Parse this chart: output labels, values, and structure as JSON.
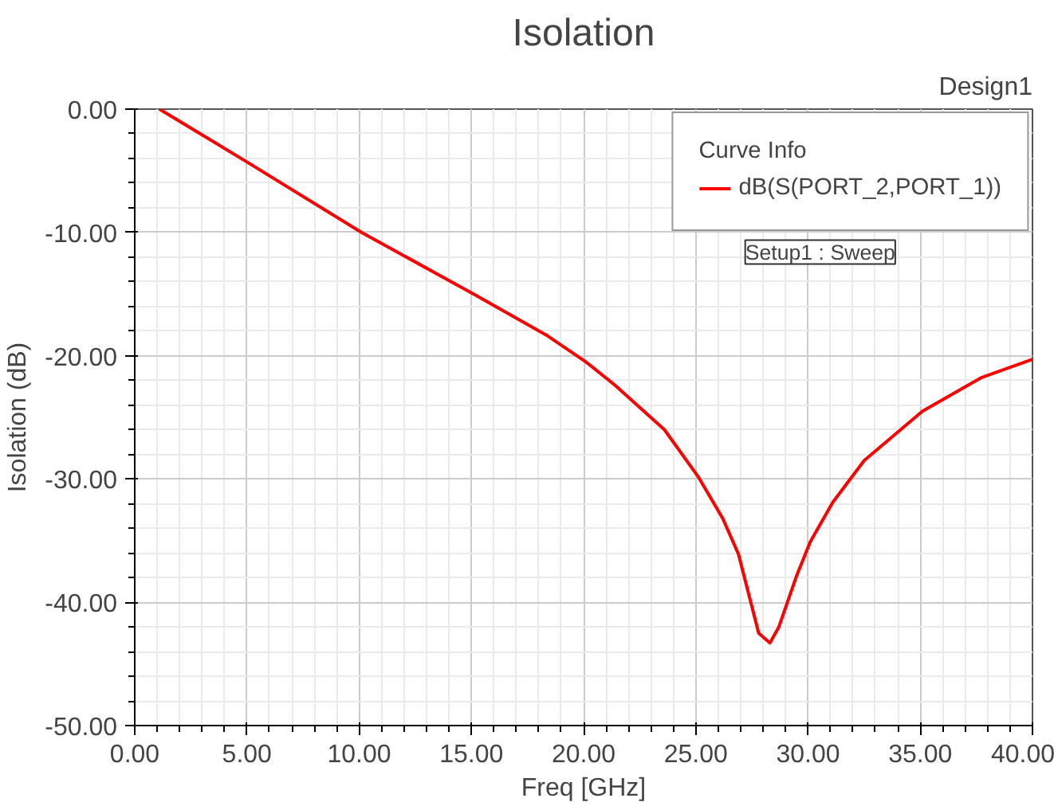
{
  "chart_data": {
    "type": "line",
    "title": "Isolation",
    "xlabel": "Freq [GHz]",
    "ylabel": "Isolation (dB)",
    "legend_title": "Curve Info",
    "annotations": [
      "Design1",
      "Setup1 : Sweep"
    ],
    "xlim": [
      0,
      40
    ],
    "ylim": [
      -50,
      0
    ],
    "xticks": [
      {
        "value": 0,
        "label": "0.00"
      },
      {
        "value": 5,
        "label": "5.00"
      },
      {
        "value": 10,
        "label": "10.00"
      },
      {
        "value": 15,
        "label": "15.00"
      },
      {
        "value": 20,
        "label": "20.00"
      },
      {
        "value": 25,
        "label": "25.00"
      },
      {
        "value": 30,
        "label": "30.00"
      },
      {
        "value": 35,
        "label": "35.00"
      },
      {
        "value": 40,
        "label": "40.00"
      }
    ],
    "yticks": [
      {
        "value": -50,
        "label": "-50.00"
      },
      {
        "value": -40,
        "label": "-40.00"
      },
      {
        "value": -30,
        "label": "-30.00"
      },
      {
        "value": -20,
        "label": "-20.00"
      },
      {
        "value": -10,
        "label": "-10.00"
      },
      {
        "value": 0,
        "label": "0.00"
      }
    ],
    "grid": true,
    "legend": "top right",
    "marker": "none",
    "line_style": "solid",
    "series": [
      {
        "name": "dB(S(PORT_2,PORT_1))",
        "color": "#ff0000",
        "x": [
          1.1,
          5.1,
          10.1,
          15.1,
          18.4,
          20.1,
          21.4,
          23.6,
          25.1,
          26.2,
          26.9,
          27.8,
          28.3,
          28.7,
          29.5,
          30.1,
          31.1,
          32.5,
          35.1,
          37.7,
          40.0
        ],
        "values": [
          0.0,
          -4.4,
          -10.0,
          -15.0,
          -18.4,
          -20.5,
          -22.4,
          -26.0,
          -29.8,
          -33.2,
          -36.1,
          -42.5,
          -43.3,
          -42.0,
          -37.8,
          -35.1,
          -31.9,
          -28.5,
          -24.5,
          -21.8,
          -20.3
        ]
      }
    ]
  }
}
